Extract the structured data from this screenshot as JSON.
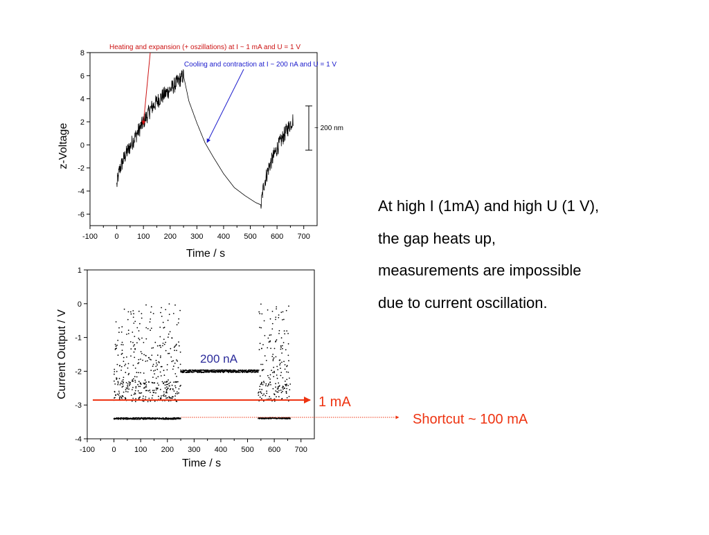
{
  "colors": {
    "heating_arrow": "#cc1111",
    "cooling_arrow": "#1a1acc",
    "current_arrow": "#ee3311",
    "label_200na": "#2b2b9a",
    "data": "#000000"
  },
  "annotations": {
    "heating": "Heating and expansion (+ oszillations) at I ~ 1 mA and U = 1 V",
    "cooling": "Cooling and contraction at I ~ 200 nA and U = 1 V",
    "scale_bar": "~ 200 nm",
    "label_200na": "200 nA",
    "label_1ma": "1 mA",
    "label_shortcut": "Shortcut ~ 100 mA"
  },
  "text": {
    "lines": [
      "At high I (1mA) and high U (1 V),",
      "the gap heats up,",
      "measurements are impossible",
      "due to current oscillation."
    ]
  },
  "chart_data": [
    {
      "type": "line",
      "xlabel": "Time / s",
      "ylabel": "z-Voltage",
      "xlim": [
        -100,
        750
      ],
      "ylim": [
        -7,
        8
      ],
      "xticks": [
        -100,
        0,
        100,
        200,
        300,
        400,
        500,
        600,
        700
      ],
      "yticks": [
        -6,
        -4,
        -2,
        0,
        2,
        4,
        6,
        8
      ],
      "series": [
        {
          "x": [
            0,
            10,
            30,
            60,
            100,
            130,
            160,
            200,
            230,
            250,
            270,
            300,
            330,
            360,
            400,
            440,
            480,
            520,
            540,
            550,
            570,
            600,
            630,
            660
          ],
          "y": [
            -3.5,
            -2.2,
            -1.0,
            0.3,
            2.0,
            3.2,
            4.0,
            4.8,
            5.5,
            6.0,
            3.8,
            1.9,
            0.2,
            -1.0,
            -2.5,
            -3.7,
            -4.4,
            -5.0,
            -5.2,
            -3.5,
            -1.9,
            -0.3,
            1.0,
            2.2
          ]
        }
      ],
      "grid": false
    },
    {
      "type": "scatter",
      "xlabel": "Time / s",
      "ylabel": "Current Output / V",
      "xlim": [
        -100,
        750
      ],
      "ylim": [
        -4,
        1
      ],
      "xticks": [
        -100,
        0,
        100,
        200,
        300,
        400,
        500,
        600,
        700
      ],
      "yticks": [
        -4,
        -3,
        -2,
        -1,
        0,
        1
      ],
      "series": [
        {
          "x": [
            0,
            250,
            540,
            660
          ],
          "y": [
            -2.8,
            -2.5,
            -2.8,
            -2.5
          ]
        },
        {
          "x": [
            250,
            540
          ],
          "y": [
            -2.0,
            -2.05
          ]
        },
        {
          "x": [
            0,
            250,
            540,
            660
          ],
          "y": [
            -3.42,
            -3.37,
            -3.4,
            -3.38
          ]
        }
      ],
      "grid": false
    }
  ]
}
